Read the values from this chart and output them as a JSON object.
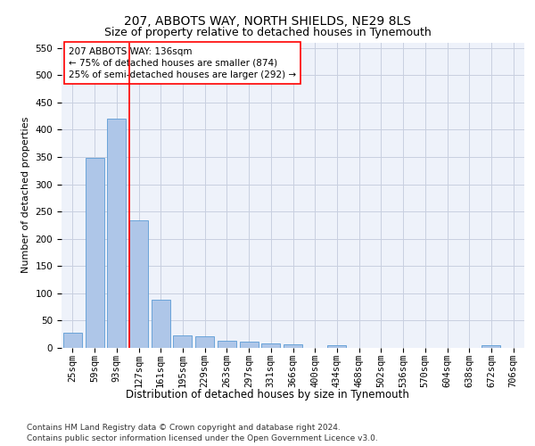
{
  "title": "207, ABBOTS WAY, NORTH SHIELDS, NE29 8LS",
  "subtitle": "Size of property relative to detached houses in Tynemouth",
  "xlabel": "Distribution of detached houses by size in Tynemouth",
  "ylabel": "Number of detached properties",
  "categories": [
    "25sqm",
    "59sqm",
    "93sqm",
    "127sqm",
    "161sqm",
    "195sqm",
    "229sqm",
    "263sqm",
    "297sqm",
    "331sqm",
    "366sqm",
    "400sqm",
    "434sqm",
    "468sqm",
    "502sqm",
    "536sqm",
    "570sqm",
    "604sqm",
    "638sqm",
    "672sqm",
    "706sqm"
  ],
  "values": [
    27,
    348,
    420,
    233,
    88,
    23,
    22,
    13,
    11,
    8,
    6,
    0,
    5,
    0,
    0,
    0,
    0,
    0,
    0,
    5,
    0
  ],
  "bar_color": "#aec6e8",
  "bar_edge_color": "#5b9bd5",
  "vline_x_index": 3,
  "vline_color": "red",
  "annotation_text": "207 ABBOTS WAY: 136sqm\n← 75% of detached houses are smaller (874)\n25% of semi-detached houses are larger (292) →",
  "annotation_box_color": "white",
  "annotation_box_edge": "red",
  "ylim": [
    0,
    560
  ],
  "yticks": [
    0,
    50,
    100,
    150,
    200,
    250,
    300,
    350,
    400,
    450,
    500,
    550
  ],
  "background_color": "#eef2fa",
  "grid_color": "#c8cfe0",
  "footer_line1": "Contains HM Land Registry data © Crown copyright and database right 2024.",
  "footer_line2": "Contains public sector information licensed under the Open Government Licence v3.0.",
  "title_fontsize": 10,
  "subtitle_fontsize": 9,
  "xlabel_fontsize": 8.5,
  "ylabel_fontsize": 8,
  "tick_fontsize": 7.5,
  "annotation_fontsize": 7.5,
  "footer_fontsize": 6.5
}
